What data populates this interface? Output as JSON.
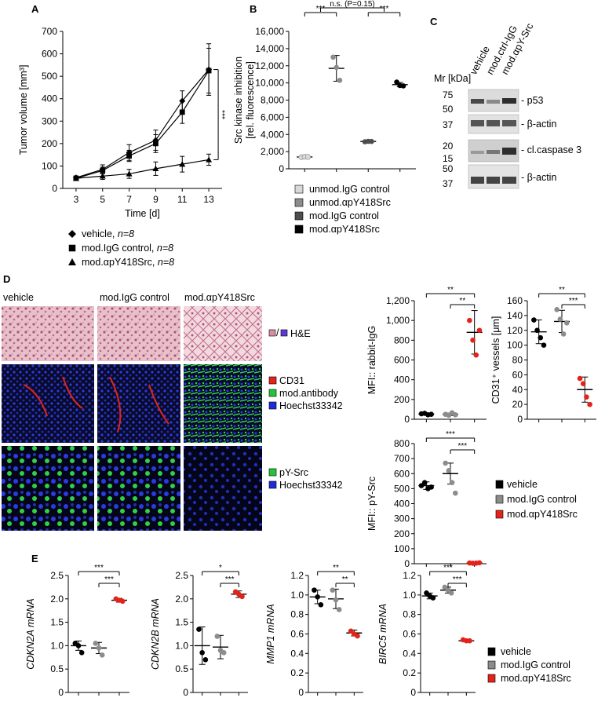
{
  "colors": {
    "black": "#000000",
    "light_gray": "#d9d9d9",
    "mid_gray": "#8c8c8c",
    "dark_gray": "#4d4d4d",
    "red": "#e2231a",
    "he_pink": "#d88ea0",
    "he_purple": "#5b3bd6",
    "cd31_red": "#e2231a",
    "antibody_green": "#22c43a",
    "hoechst_blue": "#1f2bd6"
  },
  "panel_labels": {
    "a": "A",
    "b": "B",
    "c": "C",
    "d": "D",
    "e": "E"
  },
  "chart_data": [
    {
      "id": "A",
      "type": "line",
      "xlabel": "Time [d]",
      "ylabel": "Tumor volume [mm³]",
      "x": [
        3,
        5,
        7,
        9,
        11,
        13
      ],
      "xlim": [
        2,
        14
      ],
      "ylim": [
        0,
        700
      ],
      "yticks": [
        0,
        100,
        200,
        300,
        400,
        500,
        600,
        700
      ],
      "series": [
        {
          "name": "vehicle, n=8",
          "marker": "diamond",
          "values": [
            48,
            85,
            160,
            215,
            390,
            530
          ],
          "errors": [
            8,
            20,
            35,
            45,
            45,
            115
          ]
        },
        {
          "name": "mod.IgG control, n=8",
          "marker": "square",
          "values": [
            45,
            80,
            145,
            200,
            340,
            525
          ],
          "errors": [
            8,
            15,
            25,
            40,
            50,
            100
          ]
        },
        {
          "name": "mod.αpY418Src, n=8",
          "marker": "triangle",
          "values": [
            45,
            55,
            65,
            88,
            108,
            128
          ],
          "errors": [
            8,
            15,
            20,
            30,
            35,
            25
          ]
        }
      ],
      "significance": "***"
    },
    {
      "id": "B",
      "type": "scatter",
      "ylabel_lines": [
        "Src kinase inhibition",
        "[rel. fluorescence]"
      ],
      "ylim": [
        0,
        16000
      ],
      "yticks": [
        "0",
        "2,000",
        "4,000",
        "6,000",
        "8,000",
        "10,000",
        "12,000",
        "14,000",
        "16,000"
      ],
      "groups": [
        {
          "name": "unmod.IgG control",
          "color": "light_gray",
          "points": [
            1350,
            1400,
            1380
          ],
          "mean": 1380,
          "sd": 40
        },
        {
          "name": "unmod.αpY418Src",
          "color": "mid_gray",
          "points": [
            13000,
            11800,
            10300
          ],
          "mean": 11700,
          "sd": 1500
        },
        {
          "name": "mod.IgG control",
          "color": "dark_gray",
          "points": [
            3150,
            3200,
            3180
          ],
          "mean": 3180,
          "sd": 30
        },
        {
          "name": "mod.αpY418Src",
          "color": "black",
          "points": [
            10100,
            9700,
            9650
          ],
          "mean": 9800,
          "sd": 250
        }
      ],
      "annotations": [
        "***",
        "***",
        "n.s. (P=0.15)"
      ]
    },
    {
      "id": "D-rabbit-IgG",
      "type": "scatter",
      "ylabel": "MFI:: rabbit-IgG",
      "ylim": [
        0,
        1200
      ],
      "yticks": [
        "0",
        "200",
        "400",
        "600",
        "800",
        "1,000",
        "1,200"
      ],
      "groups": [
        {
          "name": "vehicle",
          "color": "black",
          "points": [
            55,
            60,
            45,
            50
          ],
          "mean": 52,
          "sd": 8
        },
        {
          "name": "mod.IgG control",
          "color": "mid_gray",
          "points": [
            50,
            40,
            65,
            45
          ],
          "mean": 50,
          "sd": 12
        },
        {
          "name": "mod.αpY418Src",
          "color": "red",
          "points": [
            1000,
            800,
            650,
            900
          ],
          "mean": 880,
          "sd": 220
        }
      ],
      "annotations": [
        "**",
        "**"
      ]
    },
    {
      "id": "D-CD31-vessels",
      "type": "scatter",
      "ylabel": "CD31⁺ vessels [μm]",
      "ylim": [
        0,
        160
      ],
      "yticks": [
        "0",
        "20",
        "40",
        "60",
        "80",
        "100",
        "120",
        "140",
        "160"
      ],
      "groups": [
        {
          "name": "vehicle",
          "color": "black",
          "points": [
            134,
            120,
            110,
            100
          ],
          "mean": 118,
          "sd": 16
        },
        {
          "name": "mod.IgG control",
          "color": "mid_gray",
          "points": [
            148,
            135,
            115,
            130
          ],
          "mean": 132,
          "sd": 15
        },
        {
          "name": "mod.αpY418Src",
          "color": "red",
          "points": [
            55,
            48,
            30,
            20
          ],
          "mean": 40,
          "sd": 17
        }
      ],
      "annotations": [
        "**",
        "***"
      ]
    },
    {
      "id": "D-pY-Src",
      "type": "scatter",
      "ylabel": "MFI:: pY-Src",
      "ylim": [
        0,
        800
      ],
      "yticks": [
        "0",
        "100",
        "200",
        "300",
        "400",
        "500",
        "600",
        "700",
        "800"
      ],
      "groups": [
        {
          "name": "vehicle",
          "color": "black",
          "points": [
            520,
            540,
            500,
            510
          ],
          "mean": 520,
          "sd": 25
        },
        {
          "name": "mod.IgG control",
          "color": "mid_gray",
          "points": [
            670,
            620,
            540,
            470
          ],
          "mean": 600,
          "sd": 70
        },
        {
          "name": "mod.αpY418Src",
          "color": "red",
          "points": [
            5,
            3,
            4,
            6
          ],
          "mean": 4,
          "sd": 2
        }
      ],
      "annotations": [
        "***",
        "***"
      ]
    },
    {
      "id": "E-CDKN2A",
      "type": "scatter",
      "ylabel": "CDKN2A mRNA",
      "ylim": [
        0,
        2.5
      ],
      "yticks": [
        "0",
        "0.5",
        "1.0",
        "1.5",
        "2.0",
        "2.5"
      ],
      "groups": [
        {
          "name": "vehicle",
          "color": "black",
          "points": [
            1.05,
            1.0,
            0.85
          ],
          "mean": 1.0,
          "sd": 0.1
        },
        {
          "name": "mod.IgG control",
          "color": "mid_gray",
          "points": [
            1.05,
            0.95,
            0.8
          ],
          "mean": 0.95,
          "sd": 0.12
        },
        {
          "name": "mod.αpY418Src",
          "color": "red",
          "points": [
            2.0,
            1.97,
            1.95
          ],
          "mean": 1.97,
          "sd": 0.04
        }
      ],
      "annotations": [
        "***",
        "***"
      ]
    },
    {
      "id": "E-CDKN2B",
      "type": "scatter",
      "ylabel": "CDKN2B mRNA",
      "ylim": [
        0,
        2.5
      ],
      "yticks": [
        "0",
        "0.5",
        "1.0",
        "1.5",
        "2.0",
        "2.5"
      ],
      "groups": [
        {
          "name": "vehicle",
          "color": "black",
          "points": [
            1.35,
            0.85,
            0.7
          ],
          "mean": 1.0,
          "sd": 0.4
        },
        {
          "name": "mod.IgG control",
          "color": "mid_gray",
          "points": [
            1.2,
            0.9,
            0.85
          ],
          "mean": 0.97,
          "sd": 0.25
        },
        {
          "name": "mod.αpY418Src",
          "color": "red",
          "points": [
            2.15,
            2.1,
            2.05
          ],
          "mean": 2.1,
          "sd": 0.07
        }
      ],
      "annotations": [
        "*",
        "***"
      ]
    },
    {
      "id": "E-MMP1",
      "type": "scatter",
      "ylabel": "MMP1 mRNA",
      "ylim": [
        0,
        1.2
      ],
      "yticks": [
        "0",
        "0.2",
        "0.4",
        "0.6",
        "0.8",
        "1.0",
        "1.2"
      ],
      "groups": [
        {
          "name": "vehicle",
          "color": "black",
          "points": [
            1.05,
            0.98,
            0.9
          ],
          "mean": 0.98,
          "sd": 0.07
        },
        {
          "name": "mod.IgG control",
          "color": "mid_gray",
          "points": [
            1.05,
            0.95,
            0.85
          ],
          "mean": 0.96,
          "sd": 0.1
        },
        {
          "name": "mod.αpY418Src",
          "color": "red",
          "points": [
            0.63,
            0.6,
            0.58
          ],
          "mean": 0.61,
          "sd": 0.03
        }
      ],
      "annotations": [
        "**",
        "**"
      ]
    },
    {
      "id": "E-BIRC5",
      "type": "scatter",
      "ylabel": "BIRC5 mRNA",
      "ylim": [
        0,
        1.2
      ],
      "yticks": [
        "0",
        "0.2",
        "0.4",
        "0.6",
        "0.8",
        "1.0",
        "1.2"
      ],
      "groups": [
        {
          "name": "vehicle",
          "color": "black",
          "points": [
            1.02,
            0.99,
            0.97
          ],
          "mean": 0.99,
          "sd": 0.03
        },
        {
          "name": "mod.IgG control",
          "color": "mid_gray",
          "points": [
            1.08,
            1.05,
            1.02
          ],
          "mean": 1.05,
          "sd": 0.03
        },
        {
          "name": "mod.αpY418Src",
          "color": "red",
          "points": [
            0.54,
            0.53,
            0.53
          ],
          "mean": 0.53,
          "sd": 0.01
        }
      ],
      "annotations": [
        "***",
        "***"
      ]
    }
  ],
  "legend_a": [
    {
      "marker": "diamond",
      "text": "vehicle, ",
      "n": "n=8"
    },
    {
      "marker": "square",
      "text": "mod.IgG control, ",
      "n": "n=8"
    },
    {
      "marker": "triangle",
      "text": "mod.αpY418Src, ",
      "n": "n=8"
    }
  ],
  "legend_b": [
    {
      "color": "light_gray",
      "text": "unmod.IgG control"
    },
    {
      "color": "mid_gray",
      "text": "unmod.αpY418Src"
    },
    {
      "color": "dark_gray",
      "text": "mod.IgG control"
    },
    {
      "color": "black",
      "text": "mod.αpY418Src"
    }
  ],
  "legend_de": [
    {
      "color": "black",
      "text": "vehicle"
    },
    {
      "color": "mid_gray",
      "text": "mod.IgG control"
    },
    {
      "color": "red",
      "text": "mod.αpY418Src"
    }
  ],
  "blot": {
    "mr_label": "Mr [kDa]",
    "lanes": [
      "vehicle",
      "mod.ctrl-IgG",
      "mod.αpY-Src"
    ],
    "rows": [
      {
        "markers": [
          "75",
          "50"
        ],
        "label": "- p53"
      },
      {
        "markers": [
          "37"
        ],
        "label": "- β-actin"
      },
      {
        "markers": [
          "20",
          "15"
        ],
        "label": "- cl.caspase 3"
      },
      {
        "markers": [
          "50",
          "37"
        ],
        "label": "- β-actin"
      }
    ]
  },
  "micro": {
    "columns": [
      "vehicle",
      "mod.IgG control",
      "mod.αpY418Src"
    ],
    "row1_legend": "H&E",
    "row2_legend": [
      "CD31",
      "mod.antibody",
      "Hoechst33342"
    ],
    "row3_legend": [
      "pY-Src",
      "Hoechst33342"
    ]
  }
}
